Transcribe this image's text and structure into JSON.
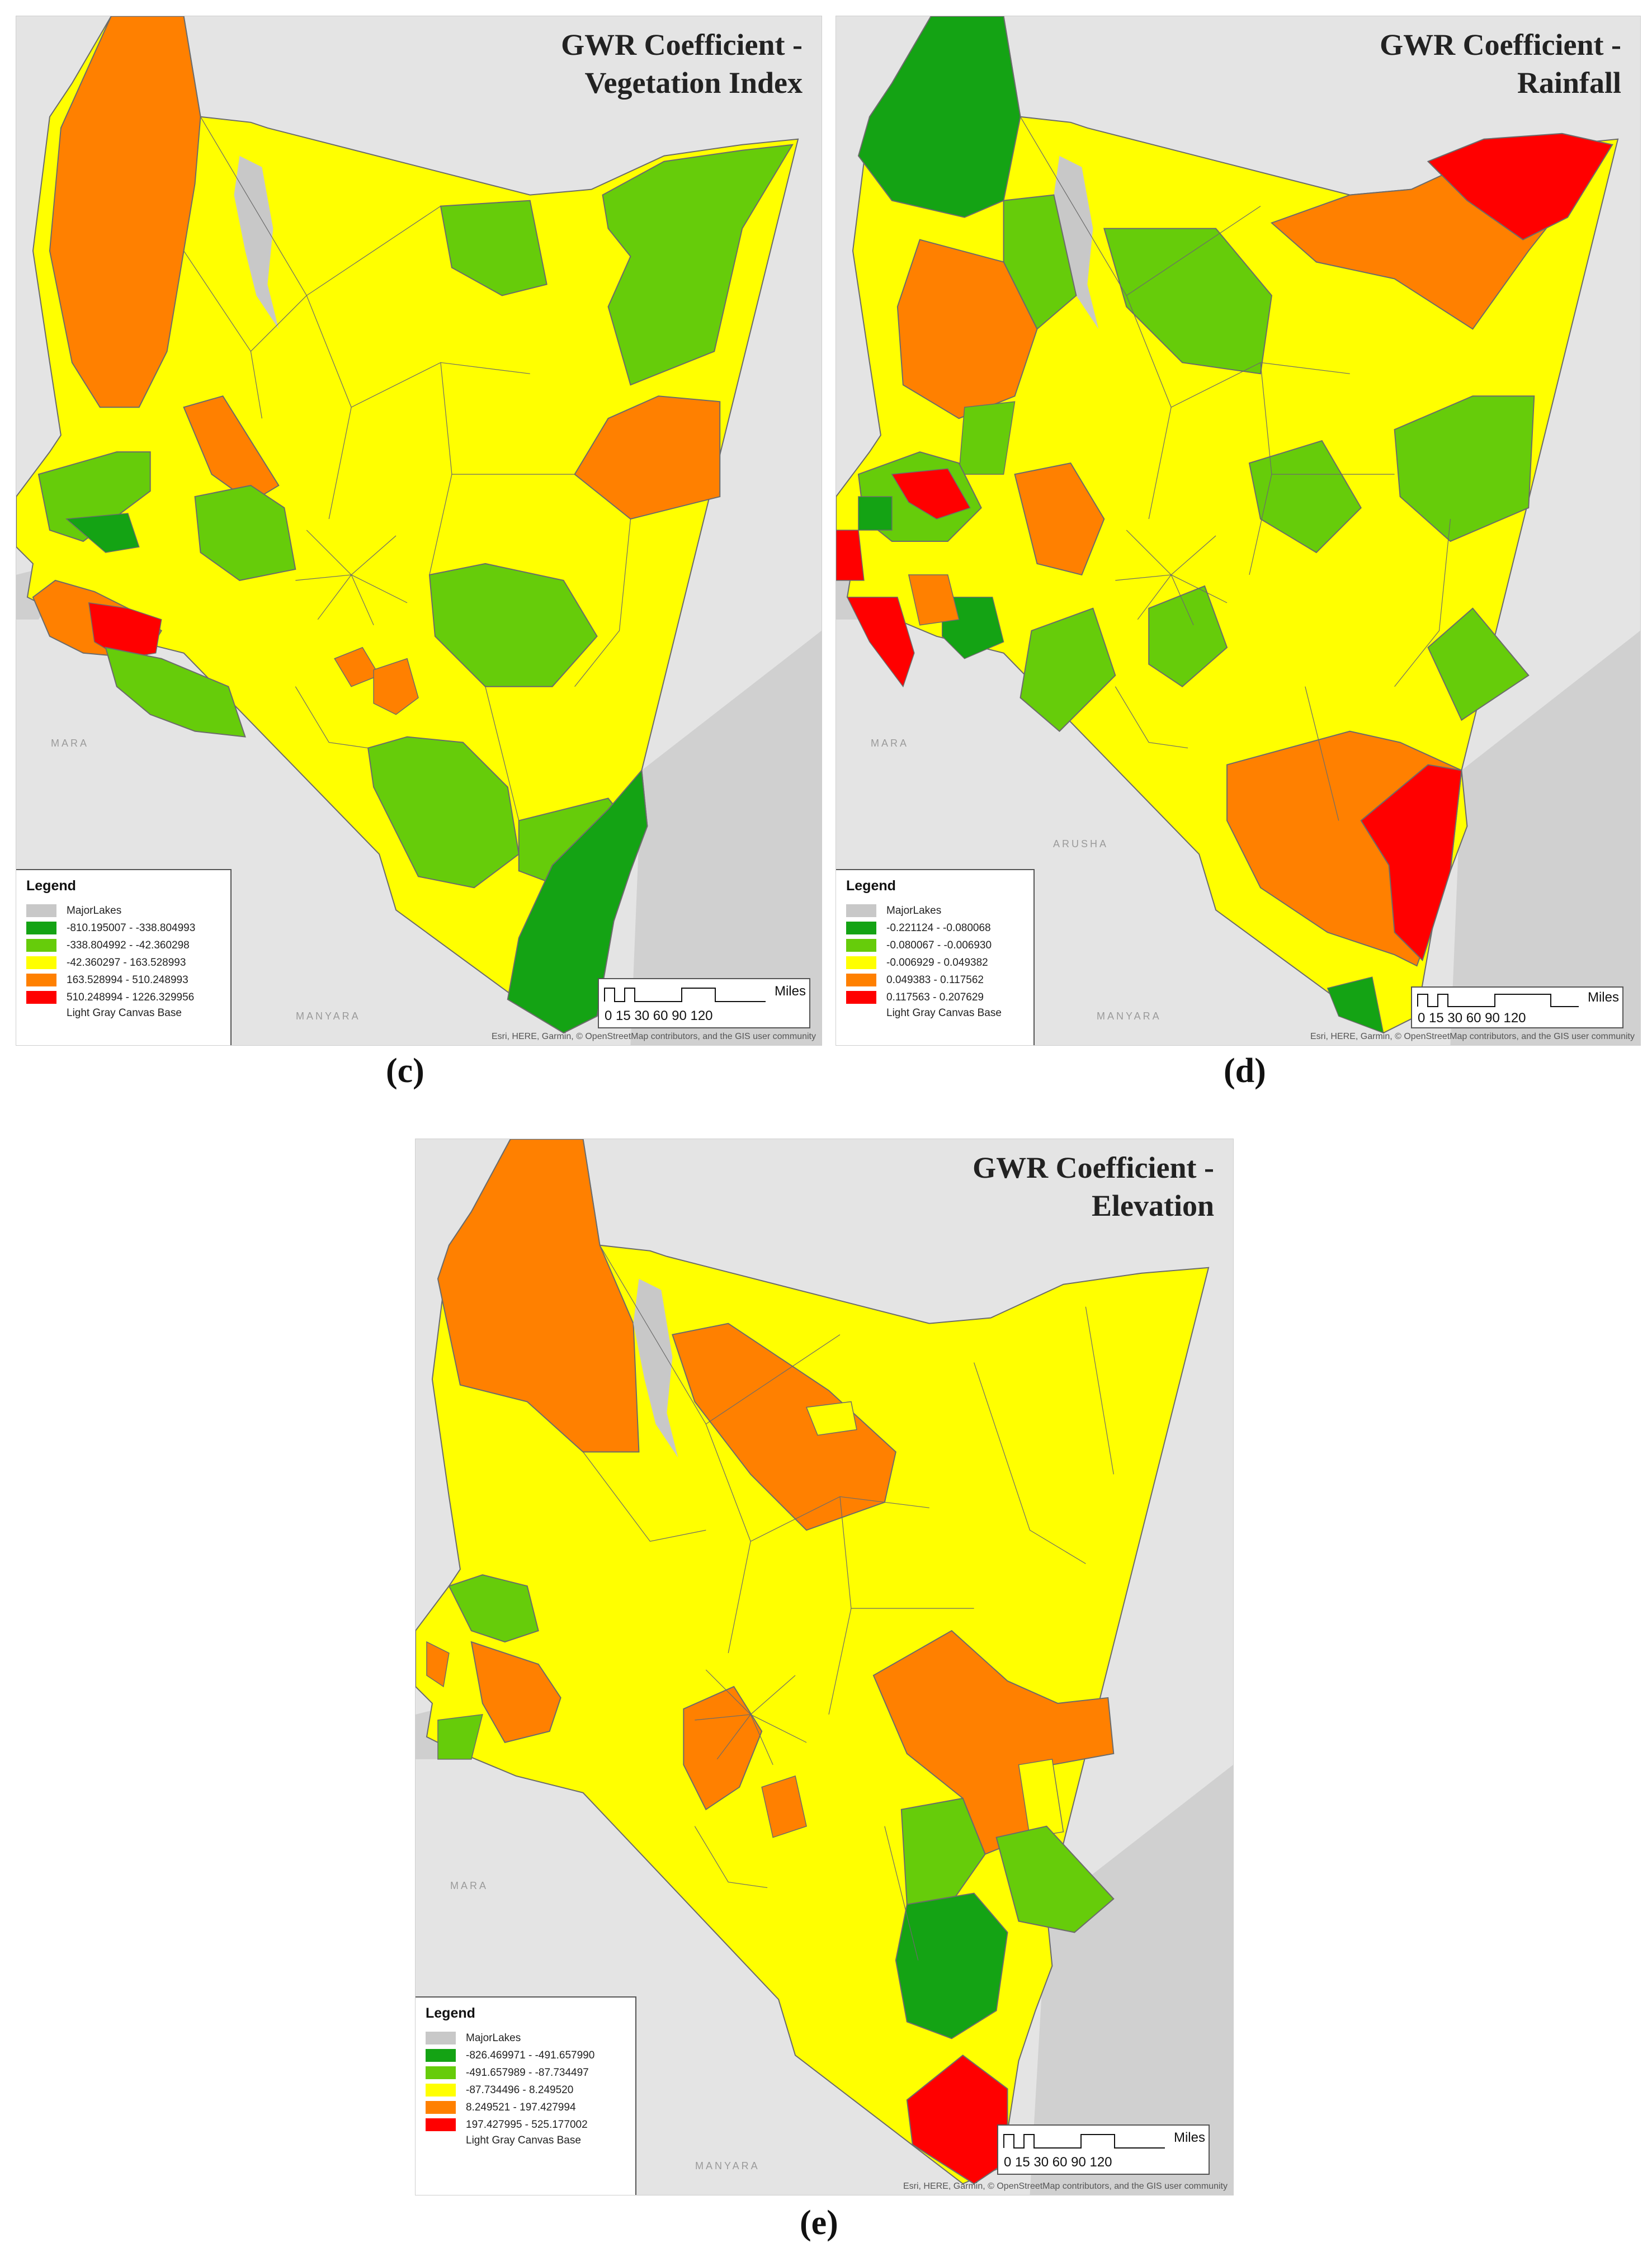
{
  "panels": {
    "c": {
      "label": "(c)",
      "title_line1": "GWR Coefficient -",
      "title_line2": "Vegetation Index",
      "legend_title": "Legend",
      "lakes_label": "MajorLakes",
      "classes": [
        {
          "range": "-810.195007 - -338.804993",
          "color": "#14a314"
        },
        {
          "range": "-338.804992 - -42.360298",
          "color": "#66cc0a"
        },
        {
          "range": "-42.360297 - 163.528993",
          "color": "#ffff00"
        },
        {
          "range": "163.528994 - 510.248993",
          "color": "#ff8000"
        },
        {
          "range": "510.248994 - 1226.329956",
          "color": "#ff0000"
        }
      ],
      "base_label": "Light Gray Canvas Base",
      "scale_ticks": "0  15 30      60      90      120",
      "scale_units": "Miles"
    },
    "d": {
      "label": "(d)",
      "title_line1": "GWR Coefficient -",
      "title_line2": "Rainfall",
      "legend_title": "Legend",
      "lakes_label": "MajorLakes",
      "classes": [
        {
          "range": "-0.221124 - -0.080068",
          "color": "#14a314"
        },
        {
          "range": "-0.080067 - -0.006930",
          "color": "#66cc0a"
        },
        {
          "range": "-0.006929 - 0.049382",
          "color": "#ffff00"
        },
        {
          "range": "0.049383 - 0.117562",
          "color": "#ff8000"
        },
        {
          "range": "0.117563 - 0.207629",
          "color": "#ff0000"
        }
      ],
      "base_label": "Light Gray Canvas Base",
      "scale_ticks": "0  15 30      60      90      120",
      "scale_units": "Miles"
    },
    "e": {
      "label": "(e)",
      "title_line1": "GWR Coefficient -",
      "title_line2": "Elevation",
      "legend_title": "Legend",
      "lakes_label": "MajorLakes",
      "classes": [
        {
          "range": "-826.469971 - -491.657990",
          "color": "#14a314"
        },
        {
          "range": "-491.657989 - -87.734497",
          "color": "#66cc0a"
        },
        {
          "range": "-87.734496 - 8.249520",
          "color": "#ffff00"
        },
        {
          "range": "8.249521 - 197.427994",
          "color": "#ff8000"
        },
        {
          "range": "197.427995 - 525.177002",
          "color": "#ff0000"
        }
      ],
      "base_label": "Light Gray Canvas Base",
      "scale_ticks": "0  15 30      60      90      120",
      "scale_units": "Miles"
    }
  },
  "basemap_labels": {
    "mara": "MARA",
    "manyara": "MANYARA",
    "arusha": "ARUSHA"
  },
  "attribution": "Esri, HERE, Garmin, © OpenStreetMap contributors, and the GIS user community",
  "colors": {
    "background": "#e4e4e4",
    "ocean": "#cfcfcf",
    "lake": "#c8c8c8",
    "boundary": "#6b6b6b"
  }
}
